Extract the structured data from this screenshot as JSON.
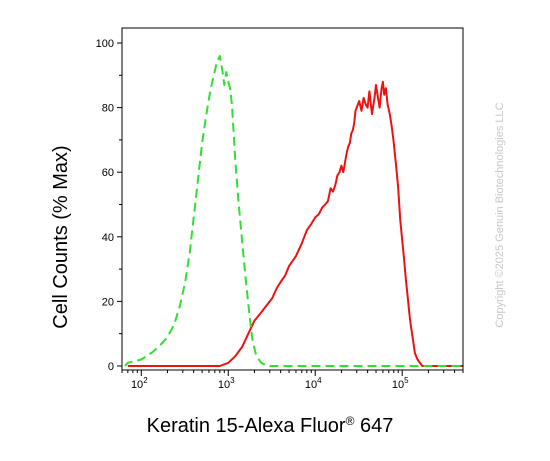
{
  "chart_data": {
    "type": "line",
    "title": "",
    "xlabel": {
      "text": "Keratin 15-Alexa Fluor",
      "superscript": "®",
      "suffix": " 647"
    },
    "ylabel": "Cell Counts (% Max)",
    "x_scale": "log",
    "xlim": [
      60,
      500000
    ],
    "ylim": [
      0,
      100
    ],
    "x_ticks": [
      {
        "value": 100,
        "base": "10",
        "exp": "2"
      },
      {
        "value": 1000,
        "base": "10",
        "exp": "3"
      },
      {
        "value": 10000,
        "base": "10",
        "exp": "4"
      },
      {
        "value": 100000,
        "base": "10",
        "exp": "5"
      }
    ],
    "y_ticks": [
      "0",
      "20",
      "40",
      "60",
      "80",
      "100"
    ],
    "grid": false,
    "legend": "none",
    "series": [
      {
        "color": "#ee1111",
        "style": "solid",
        "x": [
          70,
          200,
          320,
          450,
          550,
          650,
          800,
          1000,
          1200,
          1450,
          1700,
          2000,
          2300,
          2800,
          3200,
          3600,
          4000,
          4500,
          5000,
          6000,
          7000,
          8000,
          9000,
          10000,
          11000,
          12000,
          13000,
          14000,
          15000,
          16000,
          17000,
          18000,
          19000,
          20000,
          21000,
          22000,
          23000,
          24000,
          25000,
          26000,
          27000,
          28000,
          29000,
          30000,
          32000,
          34000,
          36000,
          38000,
          40000,
          42000,
          45000,
          48000,
          50000,
          52000,
          55000,
          58000,
          60000,
          62000,
          65000,
          68000,
          72000,
          76000,
          80000,
          85000,
          90000,
          95000,
          100000,
          105000,
          110000,
          115000,
          120000,
          125000,
          130000,
          135000,
          140000,
          150000,
          170000,
          210000,
          300000,
          500000
        ],
        "y": [
          0,
          0,
          0,
          0,
          0,
          0,
          0,
          1,
          3,
          6,
          10,
          14,
          16,
          19,
          21,
          24,
          26,
          28,
          31,
          34,
          38,
          42,
          44,
          46,
          47,
          49,
          50,
          51,
          55,
          54,
          56,
          59,
          60,
          62,
          60,
          63,
          66,
          68,
          69,
          72,
          73,
          75,
          79,
          80,
          82,
          79,
          83,
          81,
          80,
          85,
          78,
          83,
          87,
          84,
          80,
          86,
          88,
          84,
          86,
          81,
          78,
          74,
          69,
          62,
          55,
          45,
          39,
          33,
          27,
          22,
          17,
          13,
          10,
          7,
          4,
          2,
          0,
          0,
          0,
          0
        ]
      },
      {
        "color": "#33dd33",
        "style": "dashed",
        "x": [
          65,
          70,
          100,
          130,
          160,
          200,
          240,
          280,
          320,
          360,
          400,
          450,
          500,
          560,
          620,
          680,
          740,
          800,
          850,
          900,
          950,
          1000,
          1050,
          1100,
          1150,
          1200,
          1300,
          1450,
          1600,
          1750,
          1900,
          2100,
          2400,
          2800,
          3400,
          5000,
          20000,
          100000,
          500000
        ],
        "y": [
          0,
          1,
          2,
          4,
          6,
          9,
          13,
          19,
          26,
          35,
          46,
          58,
          69,
          78,
          85,
          90,
          94,
          96,
          92,
          87,
          91,
          88,
          86,
          81,
          73,
          64,
          52,
          38,
          26,
          16,
          8,
          3,
          1,
          0,
          0,
          0,
          0,
          0,
          0
        ]
      }
    ]
  },
  "watermark": "Copyright ©2025 Genuin Biotechnologies LLC"
}
